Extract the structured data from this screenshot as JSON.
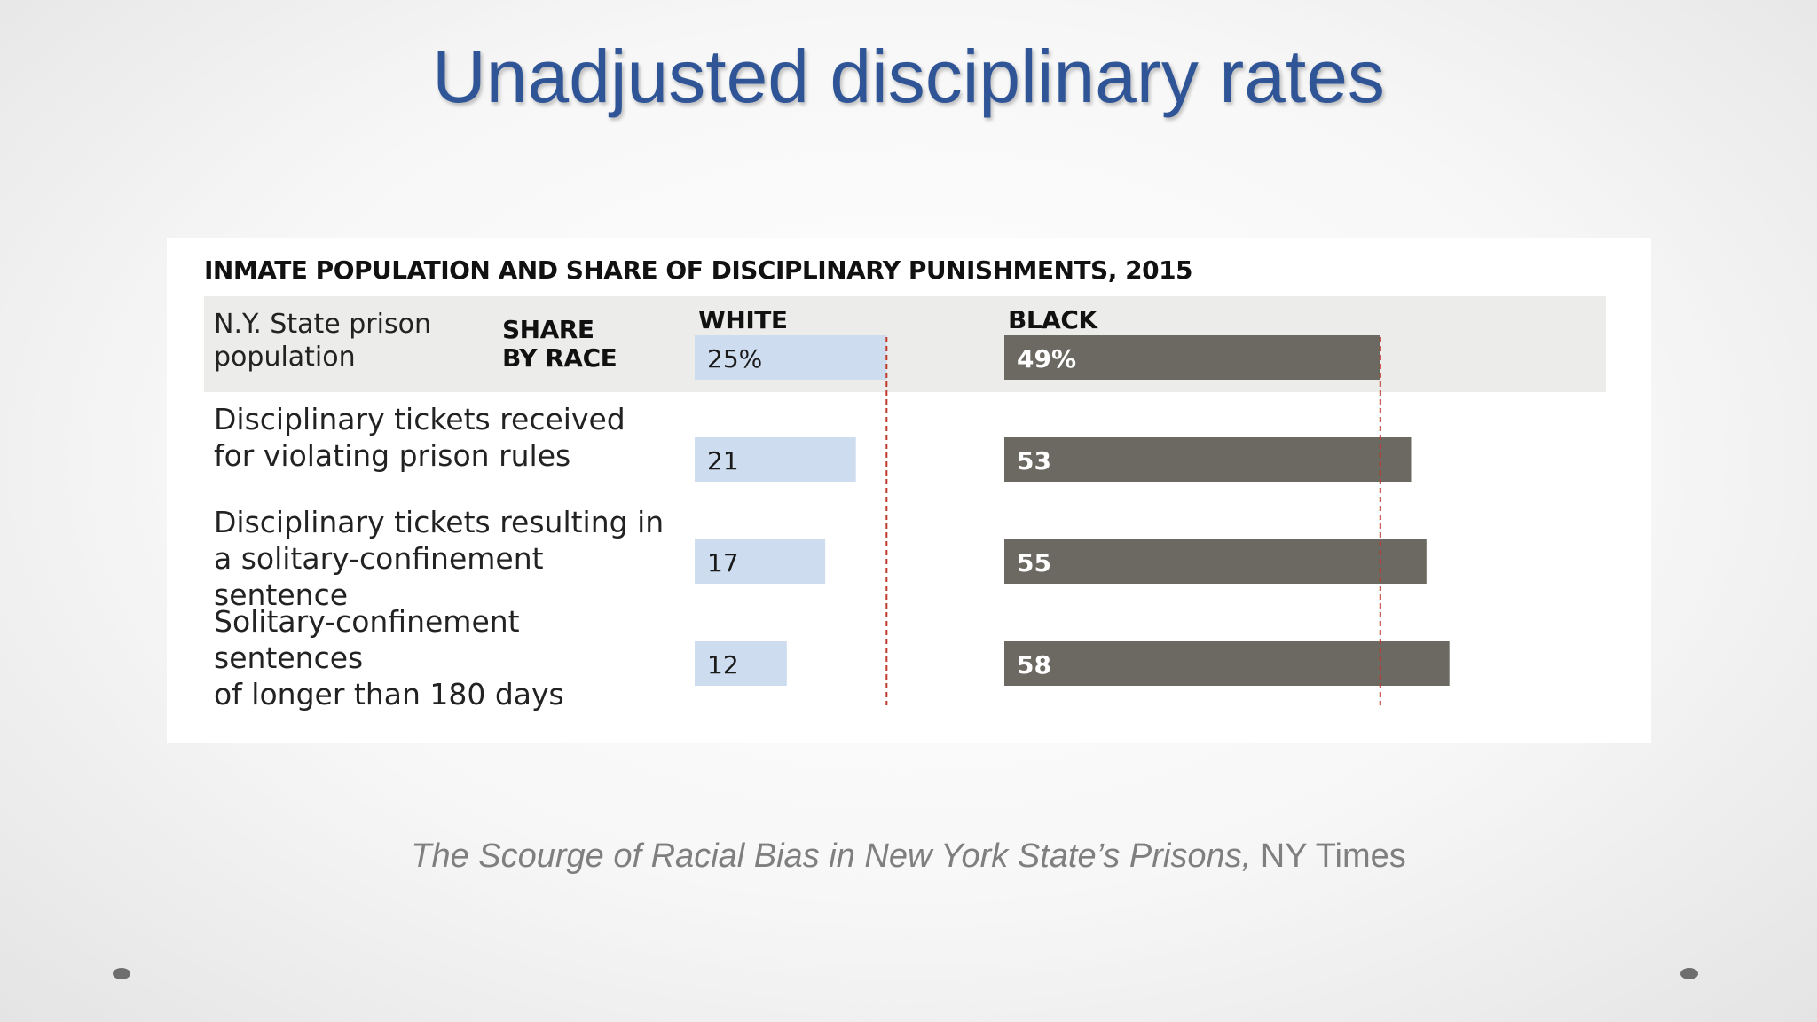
{
  "slide": {
    "title": "Unadjusted disciplinary rates",
    "caption_title": "The Scourge of Racial Bias in New York State’s Prisons,",
    "caption_source": " NY Times"
  },
  "chart_data": {
    "type": "bar",
    "title": "INMATE POPULATION AND SHARE OF DISCIPLINARY PUNISHMENTS, 2015",
    "share_label": "SHARE\nBY RACE",
    "categories": [
      "N.Y. State prison\npopulation",
      "Disciplinary tickets received\nfor violating prison rules",
      "Disciplinary tickets resulting in\na solitary-confinement sentence",
      "Solitary-confinement sentences\nof longer than 180 days"
    ],
    "series": [
      {
        "name": "WHITE",
        "color": "#cddcef",
        "label_color": "#1a1a1a",
        "values": [
          25,
          21,
          17,
          12
        ],
        "value_labels": [
          "25%",
          "21",
          "17",
          "12"
        ]
      },
      {
        "name": "BLACK",
        "color": "#6b6961",
        "label_color": "#ffffff",
        "values": [
          49,
          53,
          55,
          58
        ],
        "value_labels": [
          "49%",
          "53",
          "55",
          "58"
        ]
      }
    ],
    "reference_lines": "dashed red lines at population share (25% white, 49% black)",
    "reference_color": "#c0392b",
    "header_band_color": "#ececea"
  }
}
